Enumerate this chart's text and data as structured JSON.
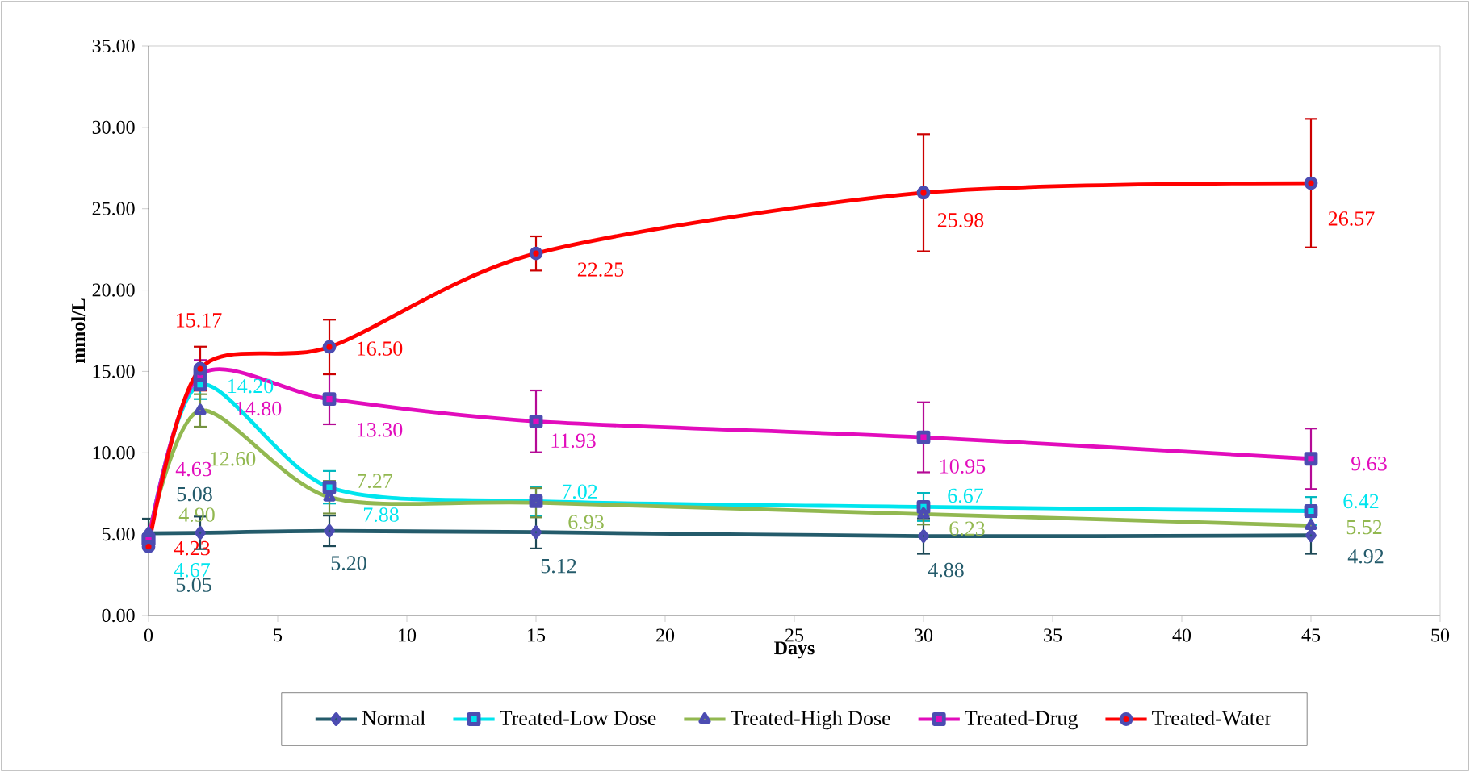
{
  "chart_data": {
    "type": "line",
    "xlabel": "Days",
    "ylabel": "mmol/L",
    "x": [
      0,
      2,
      7,
      15,
      30,
      45
    ],
    "xlim": [
      0,
      50
    ],
    "xticks": [
      0,
      5,
      10,
      15,
      20,
      25,
      30,
      35,
      40,
      45,
      50
    ],
    "ylim": [
      0,
      35
    ],
    "yticks": [
      {
        "value": 0,
        "label": "0.00"
      },
      {
        "value": 5,
        "label": "5.00"
      },
      {
        "value": 10,
        "label": "10.00"
      },
      {
        "value": 15,
        "label": "15.00"
      },
      {
        "value": 20,
        "label": "20.00"
      },
      {
        "value": 25,
        "label": "25.00"
      },
      {
        "value": 30,
        "label": "30.00"
      },
      {
        "value": 35,
        "label": "35.00"
      }
    ],
    "grid": false,
    "legend": "bottom",
    "line_style": "solid",
    "series": [
      {
        "name": "Normal",
        "color": "#245b6b",
        "marker": "diamond",
        "values": [
          5.05,
          5.08,
          5.2,
          5.12,
          4.88,
          4.92
        ],
        "errors": [
          0.9,
          1.0,
          0.94,
          1.0,
          1.09,
          1.13
        ],
        "value_labels": [
          "5.05",
          "5.08",
          "5.20",
          "5.12",
          "4.88",
          "4.92"
        ]
      },
      {
        "name": "Treated-Low Dose",
        "color": "#00e5ee",
        "marker": "square",
        "values": [
          4.67,
          14.2,
          7.88,
          7.02,
          6.67,
          6.42
        ],
        "errors": [
          null,
          0.9,
          1.0,
          0.9,
          0.86,
          0.86
        ],
        "value_labels": [
          "4.67",
          "14.20",
          "7.88",
          "7.02",
          "6.67",
          "6.42"
        ]
      },
      {
        "name": "Treated-High Dose",
        "color": "#92b850",
        "marker": "triangle",
        "values": [
          4.9,
          12.6,
          7.27,
          6.93,
          6.23,
          5.52
        ],
        "errors": [
          null,
          1.0,
          1.0,
          0.9,
          0.64,
          null
        ],
        "value_labels": [
          "4.90",
          "12.60",
          "7.27",
          "6.93",
          "6.23",
          "5.52"
        ]
      },
      {
        "name": "Treated-Drug",
        "color": "#e20cbc",
        "marker": "square",
        "values": [
          4.63,
          14.8,
          13.3,
          11.93,
          10.95,
          9.63
        ],
        "errors": [
          null,
          0.9,
          1.55,
          1.9,
          2.15,
          1.86
        ],
        "value_labels": [
          "4.63",
          "14.80",
          "13.30",
          "11.93",
          "10.95",
          "9.63"
        ]
      },
      {
        "name": "Treated-Water",
        "color": "#ff0000",
        "marker": "circle",
        "values": [
          4.23,
          15.17,
          16.5,
          22.25,
          25.98,
          26.57
        ],
        "errors": [
          null,
          1.35,
          1.68,
          1.05,
          3.6,
          3.95
        ],
        "value_labels": [
          "4.23",
          "15.17",
          "16.50",
          "22.25",
          "25.98",
          "26.57"
        ]
      }
    ]
  }
}
